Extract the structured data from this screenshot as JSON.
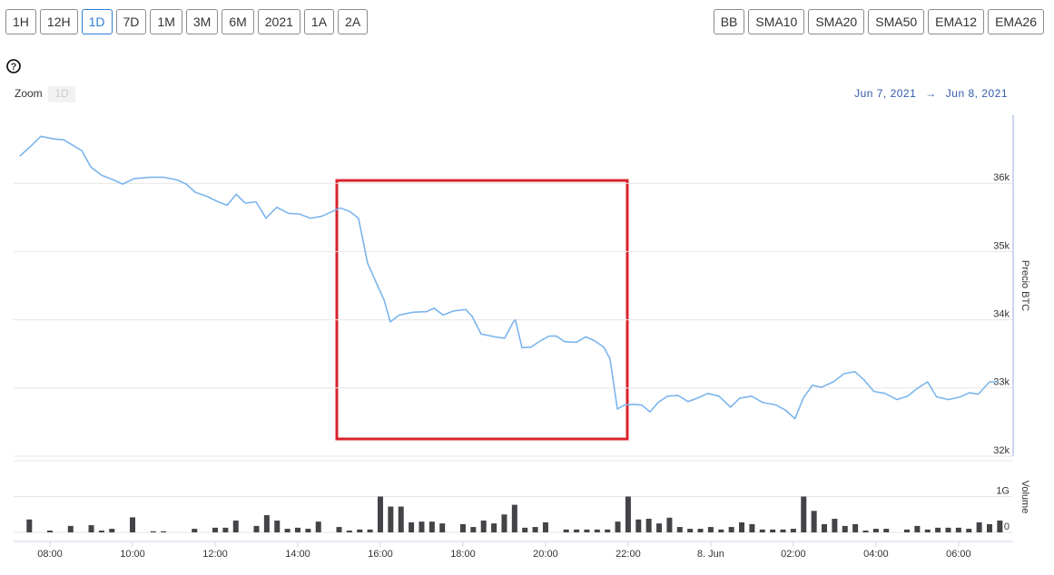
{
  "toolbar": {
    "ranges": [
      "1H",
      "12H",
      "1D",
      "7D",
      "1M",
      "3M",
      "6M",
      "2021",
      "1A",
      "2A"
    ],
    "selected_range": 2,
    "indicators": [
      "BB",
      "SMA10",
      "SMA20",
      "SMA50",
      "EMA12",
      "EMA26"
    ],
    "help_icon": "?",
    "zoom_label": "Zoom",
    "zoom_button": "1D",
    "date_from": "Jun 7, 2021",
    "date_arrow": "→",
    "date_to": "Jun 8, 2021"
  },
  "chart_data": [
    {
      "type": "line",
      "y_label": "Precio BTC",
      "color": "#7cb5ec",
      "grid": true,
      "xlim": [
        7.12,
        31.3
      ],
      "ylim": [
        32000,
        37000
      ],
      "yticks": [
        {
          "value": 32000,
          "label": "32k"
        },
        {
          "value": 33000,
          "label": "33k"
        },
        {
          "value": 34000,
          "label": "34k"
        },
        {
          "value": 35000,
          "label": "35k"
        },
        {
          "value": 36000,
          "label": "36k"
        }
      ],
      "x": [
        7.27,
        7.56,
        7.78,
        8.11,
        8.33,
        8.55,
        8.77,
        8.99,
        9.25,
        9.54,
        9.76,
        10.04,
        10.42,
        10.75,
        11.08,
        11.3,
        11.52,
        11.8,
        12.07,
        12.29,
        12.51,
        12.73,
        12.99,
        13.23,
        13.49,
        13.78,
        14.04,
        14.31,
        14.59,
        14.88,
        15.03,
        15.25,
        15.47,
        15.69,
        15.91,
        16.09,
        16.24,
        16.46,
        16.79,
        17.12,
        17.3,
        17.52,
        17.78,
        18.07,
        18.22,
        18.44,
        18.77,
        19.01,
        19.21,
        19.27,
        19.43,
        19.65,
        19.87,
        20.09,
        20.26,
        20.46,
        20.75,
        20.97,
        21.19,
        21.41,
        21.56,
        21.74,
        21.91,
        22.13,
        22.33,
        22.53,
        22.73,
        22.95,
        23.21,
        23.45,
        23.67,
        23.93,
        24.2,
        24.48,
        24.7,
        24.99,
        25.25,
        25.58,
        25.82,
        26.04,
        26.24,
        26.46,
        26.68,
        26.97,
        27.23,
        27.49,
        27.71,
        27.95,
        28.22,
        28.51,
        28.77,
        28.99,
        29.25,
        29.47,
        29.76,
        30.04,
        30.26,
        30.48,
        30.75,
        30.97
      ],
      "values": [
        36400,
        36560,
        36690,
        36650,
        36640,
        36560,
        36480,
        36240,
        36120,
        36050,
        35990,
        36070,
        36090,
        36090,
        36050,
        35990,
        35870,
        35810,
        35730,
        35680,
        35840,
        35710,
        35730,
        35490,
        35650,
        35560,
        35550,
        35490,
        35520,
        35600,
        35640,
        35590,
        35490,
        34830,
        34530,
        34290,
        33970,
        34070,
        34110,
        34120,
        34170,
        34070,
        34130,
        34150,
        34050,
        33790,
        33750,
        33730,
        33960,
        34000,
        33590,
        33600,
        33690,
        33760,
        33760,
        33680,
        33670,
        33750,
        33690,
        33600,
        33430,
        32690,
        32750,
        32760,
        32750,
        32650,
        32790,
        32880,
        32890,
        32800,
        32850,
        32920,
        32880,
        32720,
        32850,
        32880,
        32790,
        32750,
        32670,
        32550,
        32850,
        33040,
        33010,
        33090,
        33210,
        33240,
        33120,
        32950,
        32920,
        32830,
        32880,
        32990,
        33090,
        32870,
        32830,
        32870,
        32930,
        32910,
        33090,
        33090
      ]
    },
    {
      "type": "bar",
      "y_label": "Volume",
      "color": "#434348",
      "grid": true,
      "xlim": [
        7.12,
        31.3
      ],
      "ylim": [
        0,
        2000000000
      ],
      "yticks": [
        0,
        {
          "value": 1000000000,
          "label": "1G"
        }
      ],
      "xticks": [
        {
          "value": 8,
          "label": "08:00"
        },
        {
          "value": 10,
          "label": "10:00"
        },
        {
          "value": 12,
          "label": "12:00"
        },
        {
          "value": 14,
          "label": "14:00"
        },
        {
          "value": 16,
          "label": "16:00"
        },
        {
          "value": 18,
          "label": "18:00"
        },
        {
          "value": 20,
          "label": "20:00"
        },
        {
          "value": 22,
          "label": "22:00"
        },
        {
          "value": 24,
          "label": "8. Jun"
        },
        {
          "value": 26,
          "label": "02:00"
        },
        {
          "value": 28,
          "label": "04:00"
        },
        {
          "value": 30,
          "label": "06:00"
        }
      ],
      "x": [
        7.5,
        8,
        8.5,
        9,
        9.25,
        9.5,
        10,
        10.5,
        10.75,
        11.5,
        12,
        12.25,
        12.5,
        13,
        13.25,
        13.5,
        13.75,
        14,
        14.25,
        14.5,
        15,
        15.25,
        15.5,
        15.75,
        16,
        16.25,
        16.5,
        16.75,
        17,
        17.25,
        17.5,
        18,
        18.25,
        18.5,
        18.75,
        19,
        19.25,
        19.5,
        19.75,
        20,
        20.5,
        20.75,
        21,
        21.25,
        21.5,
        21.75,
        22,
        22.25,
        22.5,
        22.75,
        23,
        23.25,
        23.5,
        23.75,
        24,
        24.25,
        24.5,
        24.75,
        25,
        25.25,
        25.5,
        25.75,
        26,
        26.25,
        26.5,
        26.75,
        27,
        27.25,
        27.5,
        27.75,
        28,
        28.25,
        28.75,
        29,
        29.25,
        29.5,
        29.75,
        30,
        30.25,
        30.5,
        30.75,
        31
      ],
      "values": [
        360000000,
        50000000,
        180000000,
        200000000,
        50000000,
        100000000,
        420000000,
        30000000,
        30000000,
        100000000,
        130000000,
        130000000,
        330000000,
        180000000,
        480000000,
        330000000,
        100000000,
        130000000,
        100000000,
        300000000,
        150000000,
        50000000,
        80000000,
        80000000,
        1000000000,
        720000000,
        720000000,
        280000000,
        300000000,
        300000000,
        250000000,
        230000000,
        150000000,
        330000000,
        250000000,
        500000000,
        770000000,
        130000000,
        150000000,
        280000000,
        80000000,
        80000000,
        80000000,
        80000000,
        80000000,
        300000000,
        1000000000,
        360000000,
        380000000,
        250000000,
        410000000,
        150000000,
        100000000,
        100000000,
        150000000,
        80000000,
        150000000,
        280000000,
        230000000,
        80000000,
        80000000,
        80000000,
        100000000,
        1000000000,
        600000000,
        230000000,
        380000000,
        180000000,
        230000000,
        50000000,
        100000000,
        100000000,
        80000000,
        180000000,
        80000000,
        130000000,
        130000000,
        130000000,
        100000000,
        280000000,
        230000000,
        330000000
      ]
    }
  ]
}
